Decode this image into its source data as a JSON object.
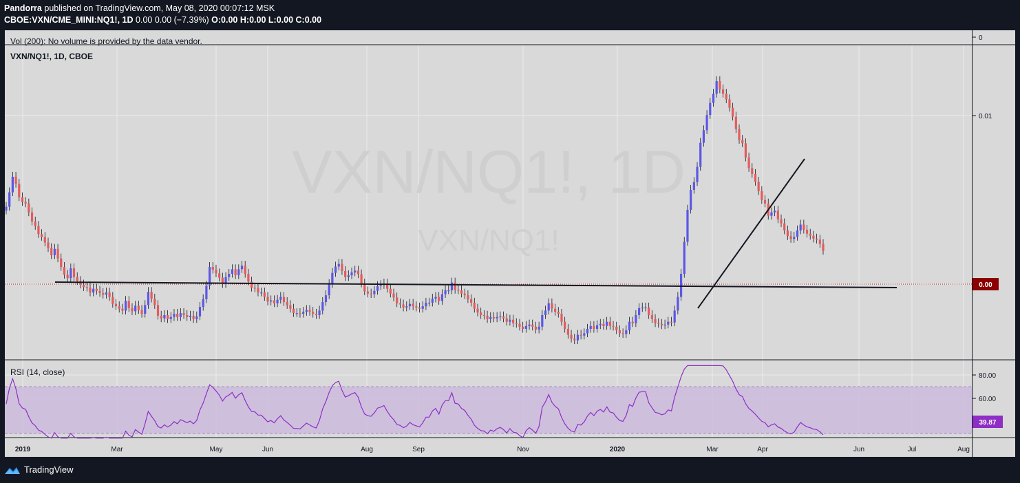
{
  "header": {
    "author": "Pandorra",
    "published_text": "published on TradingView.com, May 08, 2020 00:07:12 MSK",
    "symbol": "CBOE:VXN/CME_MINI:NQ1!, 1D",
    "ohlc_text": "0.00 0.00 (−7.39%)",
    "o": "O:0.00",
    "h": "H:0.00",
    "l": "L:0.00",
    "c": "C:0.00"
  },
  "main_pane": {
    "volume_note": "Vol (200): No volume is provided by the data vendor.",
    "symbol_label": "VXN/NQ1!, 1D, CBOE",
    "watermark_big": "VXN/NQ1!, 1D",
    "watermark_small": "VXN/NQ1!",
    "price_label": "0.00",
    "axis_ticks": [
      "0",
      "0.01"
    ]
  },
  "rsi_pane": {
    "label": "RSI (14, close)",
    "value_label": "39.87",
    "axis_ticks": [
      "80.00",
      "60.00"
    ]
  },
  "time_axis": [
    "2019",
    "Mar",
    "May",
    "Jun",
    "Aug",
    "Sep",
    "Nov",
    "2020",
    "Mar",
    "Apr",
    "Jun",
    "Jul",
    "Aug"
  ],
  "footer": {
    "brand": "TradingView"
  },
  "colors": {
    "up": "#5b57e6",
    "down": "#e55b5b",
    "rsi_line": "#8e2ec4",
    "rsi_band": "#c9b6dd",
    "price_tag": "#8b0000",
    "rsi_tag": "#8e2ec4",
    "background": "#131722",
    "panel": "#d9d9d9"
  },
  "chart_data": {
    "type": "candlestick",
    "title": "VXN/NQ1!, 1D, CBOE",
    "price_ticks": [
      0,
      0.01
    ],
    "rsi_ticks": [
      60,
      80
    ],
    "closes": [
      0.00456,
      0.00512,
      0.0058,
      0.00548,
      0.00492,
      0.00474,
      0.00468,
      0.00436,
      0.00405,
      0.00391,
      0.00366,
      0.00358,
      0.00342,
      0.00327,
      0.00309,
      0.00325,
      0.00301,
      0.00281,
      0.00264,
      0.00257,
      0.00278,
      0.00259,
      0.00251,
      0.00244,
      0.00239,
      0.00238,
      0.00229,
      0.00236,
      0.00232,
      0.00228,
      0.00225,
      0.00229,
      0.00221,
      0.00209,
      0.00205,
      0.00201,
      0.00198,
      0.00214,
      0.00202,
      0.00197,
      0.00206,
      0.00199,
      0.00193,
      0.00207,
      0.0023,
      0.00218,
      0.00207,
      0.0019,
      0.00186,
      0.00191,
      0.00185,
      0.00188,
      0.00193,
      0.00188,
      0.00194,
      0.00191,
      0.00188,
      0.0019,
      0.00185,
      0.00189,
      0.00204,
      0.00217,
      0.00242,
      0.00281,
      0.00275,
      0.00267,
      0.00258,
      0.00245,
      0.00259,
      0.00266,
      0.00276,
      0.00263,
      0.00276,
      0.00284,
      0.00266,
      0.0025,
      0.00238,
      0.00237,
      0.00229,
      0.00229,
      0.00221,
      0.00213,
      0.00215,
      0.0021,
      0.00216,
      0.00221,
      0.00212,
      0.00207,
      0.00201,
      0.00194,
      0.00194,
      0.00193,
      0.00196,
      0.00199,
      0.00196,
      0.00193,
      0.00191,
      0.00198,
      0.00212,
      0.00224,
      0.00245,
      0.00268,
      0.00282,
      0.00288,
      0.00272,
      0.00259,
      0.00263,
      0.00269,
      0.00273,
      0.00265,
      0.00246,
      0.00231,
      0.00227,
      0.00226,
      0.00232,
      0.00241,
      0.00243,
      0.00246,
      0.00236,
      0.00227,
      0.0022,
      0.0021,
      0.00208,
      0.00203,
      0.00205,
      0.00209,
      0.00205,
      0.00203,
      0.00201,
      0.00205,
      0.00211,
      0.00211,
      0.00218,
      0.00221,
      0.00214,
      0.00226,
      0.00233,
      0.00233,
      0.00248,
      0.00234,
      0.00233,
      0.00227,
      0.00224,
      0.00217,
      0.00211,
      0.00201,
      0.00195,
      0.00191,
      0.0019,
      0.00185,
      0.00188,
      0.00186,
      0.00188,
      0.00189,
      0.00186,
      0.00181,
      0.00184,
      0.00179,
      0.00178,
      0.00174,
      0.00171,
      0.00175,
      0.00177,
      0.00174,
      0.0017,
      0.00174,
      0.00191,
      0.00198,
      0.0021,
      0.00201,
      0.00196,
      0.00193,
      0.00181,
      0.00171,
      0.00163,
      0.00158,
      0.00156,
      0.00163,
      0.00162,
      0.00165,
      0.00171,
      0.00175,
      0.00171,
      0.00176,
      0.00178,
      0.00175,
      0.00181,
      0.00175,
      0.00174,
      0.00169,
      0.00165,
      0.00164,
      0.00169,
      0.00181,
      0.00179,
      0.00191,
      0.00202,
      0.00203,
      0.00203,
      0.00191,
      0.00185,
      0.00179,
      0.00178,
      0.00176,
      0.00177,
      0.00181,
      0.0018,
      0.00198,
      0.00221,
      0.00266,
      0.00344,
      0.00445,
      0.00522,
      0.00556,
      0.00628,
      0.00762,
      0.00843,
      0.00952,
      0.0105,
      0.0113,
      0.0125,
      0.0117,
      0.0113,
      0.0108,
      0.0101,
      0.0094,
      0.0085,
      0.0078,
      0.00759,
      0.00677,
      0.00622,
      0.00593,
      0.00557,
      0.00517,
      0.00481,
      0.00468,
      0.00424,
      0.00436,
      0.00442,
      0.00412,
      0.00399,
      0.00377,
      0.0036,
      0.00352,
      0.00358,
      0.00377,
      0.00395,
      0.00379,
      0.00367,
      0.00361,
      0.00353,
      0.0035,
      0.00338,
      0.0032
    ]
  }
}
